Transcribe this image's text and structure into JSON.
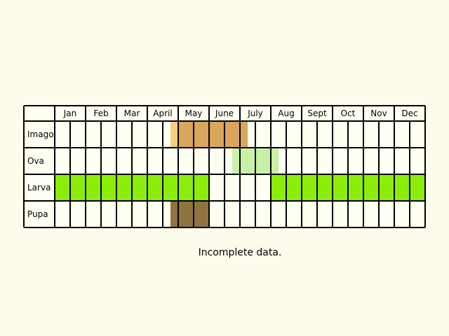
{
  "chart_data": {
    "type": "table",
    "months": [
      "Jan",
      "Feb",
      "Mar",
      "April",
      "May",
      "June",
      "July",
      "Aug",
      "Sept",
      "Oct",
      "Nov",
      "Dec"
    ],
    "cells_per_month": 2,
    "stages": [
      {
        "name": "Imago",
        "periods": [
          {
            "start": 7.5,
            "end": 8.0,
            "color": "#f5cf7e"
          },
          {
            "start": 8.0,
            "end": 12.5,
            "color": "#d9a65c"
          }
        ]
      },
      {
        "name": "Ova",
        "periods": [
          {
            "start": 11.5,
            "end": 14.5,
            "color": "#c8f0a6"
          }
        ]
      },
      {
        "name": "Larva",
        "periods": [
          {
            "start": 0,
            "end": 10,
            "color": "#8ced0a"
          },
          {
            "start": 14,
            "end": 24,
            "color": "#8ced0a"
          }
        ]
      },
      {
        "name": "Pupa",
        "periods": [
          {
            "start": 7.5,
            "end": 10,
            "color": "#8f7341"
          }
        ]
      }
    ],
    "note": "Incomplete data."
  }
}
